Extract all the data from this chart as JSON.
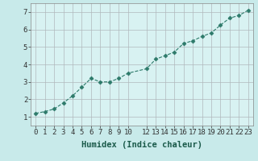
{
  "x": [
    0,
    1,
    2,
    3,
    4,
    5,
    6,
    7,
    8,
    9,
    10,
    12,
    13,
    14,
    15,
    16,
    17,
    18,
    19,
    20,
    21,
    22,
    23
  ],
  "y": [
    1.2,
    1.3,
    1.45,
    1.8,
    2.2,
    2.7,
    3.2,
    3.0,
    3.0,
    3.2,
    3.5,
    3.75,
    4.3,
    4.5,
    4.7,
    5.2,
    5.35,
    5.6,
    5.8,
    6.25,
    6.65,
    6.8,
    7.1
  ],
  "line_color": "#2d7a6a",
  "marker": "D",
  "markersize": 2.5,
  "linewidth": 0.8,
  "linestyle": "--",
  "bg_color": "#c8eaea",
  "plot_bg": "#d8f2f2",
  "grid_color": "#b0b8bc",
  "xlabel": "Humidex (Indice chaleur)",
  "xlim": [
    -0.5,
    23.5
  ],
  "ylim": [
    0.5,
    7.5
  ],
  "xticks": [
    0,
    1,
    2,
    3,
    4,
    5,
    6,
    7,
    8,
    9,
    10,
    12,
    13,
    14,
    15,
    16,
    17,
    18,
    19,
    20,
    21,
    22,
    23
  ],
  "yticks": [
    1,
    2,
    3,
    4,
    5,
    6,
    7
  ],
  "tick_fontsize": 6.5,
  "xlabel_fontsize": 7.5
}
